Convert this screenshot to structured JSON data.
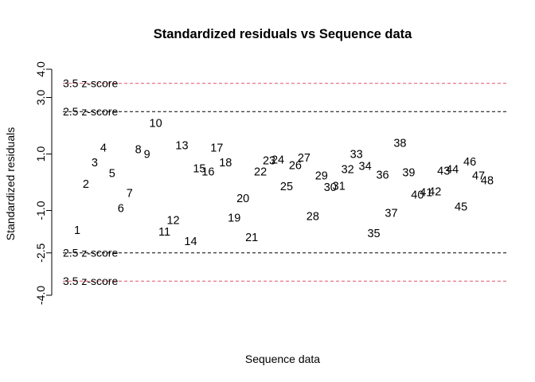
{
  "chart_data": {
    "type": "scatter",
    "title": "Standardized residuals vs Sequence data",
    "xlabel": "Sequence data",
    "ylabel": "Standardized residuals",
    "xlim": [
      1,
      48
    ],
    "ylim": [
      -4.0,
      4.0
    ],
    "y_ticks": [
      "4.0",
      "3.0",
      "1.0",
      "-1.0",
      "-2.5",
      "-4.0"
    ],
    "y_tick_values": [
      4.0,
      3.0,
      1.0,
      -1.0,
      -2.5,
      -4.0
    ],
    "grid": false,
    "marker": "text",
    "reference_lines": [
      {
        "label": "3.5 z-score",
        "value": 3.5,
        "color": "#DF536B",
        "style": "dashed"
      },
      {
        "label": "2.5 z-score",
        "value": 2.5,
        "color": "#000000",
        "style": "dashed"
      },
      {
        "label": "2.5 z-score",
        "value": -2.5,
        "color": "#000000",
        "style": "dashed"
      },
      {
        "label": "3.5 z-score",
        "value": -3.5,
        "color": "#DF536B",
        "style": "dashed"
      }
    ],
    "points": [
      {
        "x": 1,
        "y": -1.69,
        "label": "1"
      },
      {
        "x": 2,
        "y": -0.06,
        "label": "2"
      },
      {
        "x": 3,
        "y": 0.7,
        "label": "3"
      },
      {
        "x": 4,
        "y": 1.23,
        "label": "4"
      },
      {
        "x": 5,
        "y": 0.33,
        "label": "5"
      },
      {
        "x": 6,
        "y": -0.92,
        "label": "6"
      },
      {
        "x": 7,
        "y": -0.38,
        "label": "7"
      },
      {
        "x": 8,
        "y": 1.17,
        "label": "8"
      },
      {
        "x": 9,
        "y": 1.0,
        "label": "9"
      },
      {
        "x": 10,
        "y": 2.1,
        "label": "10"
      },
      {
        "x": 11,
        "y": -1.74,
        "label": "11"
      },
      {
        "x": 12,
        "y": -1.34,
        "label": "12"
      },
      {
        "x": 13,
        "y": 1.31,
        "label": "13"
      },
      {
        "x": 14,
        "y": -2.08,
        "label": "14"
      },
      {
        "x": 15,
        "y": 0.5,
        "label": "15"
      },
      {
        "x": 16,
        "y": 0.38,
        "label": "16"
      },
      {
        "x": 17,
        "y": 1.23,
        "label": "17"
      },
      {
        "x": 18,
        "y": 0.7,
        "label": "18"
      },
      {
        "x": 19,
        "y": -1.25,
        "label": "19"
      },
      {
        "x": 20,
        "y": -0.56,
        "label": "20"
      },
      {
        "x": 21,
        "y": -1.94,
        "label": "21"
      },
      {
        "x": 22,
        "y": 0.38,
        "label": "22"
      },
      {
        "x": 23,
        "y": 0.78,
        "label": "23"
      },
      {
        "x": 24,
        "y": 0.81,
        "label": "24"
      },
      {
        "x": 25,
        "y": -0.14,
        "label": "25"
      },
      {
        "x": 26,
        "y": 0.61,
        "label": "26"
      },
      {
        "x": 27,
        "y": 0.87,
        "label": "27"
      },
      {
        "x": 28,
        "y": -1.2,
        "label": "28"
      },
      {
        "x": 29,
        "y": 0.24,
        "label": "29"
      },
      {
        "x": 30,
        "y": -0.16,
        "label": "30"
      },
      {
        "x": 31,
        "y": -0.13,
        "label": "31"
      },
      {
        "x": 32,
        "y": 0.46,
        "label": "32"
      },
      {
        "x": 33,
        "y": 1.0,
        "label": "33"
      },
      {
        "x": 34,
        "y": 0.58,
        "label": "34"
      },
      {
        "x": 35,
        "y": -1.8,
        "label": "35"
      },
      {
        "x": 36,
        "y": 0.27,
        "label": "36"
      },
      {
        "x": 37,
        "y": -1.08,
        "label": "37"
      },
      {
        "x": 38,
        "y": 1.39,
        "label": "38"
      },
      {
        "x": 39,
        "y": 0.36,
        "label": "39"
      },
      {
        "x": 40,
        "y": -0.43,
        "label": "40"
      },
      {
        "x": 41,
        "y": -0.35,
        "label": "41"
      },
      {
        "x": 42,
        "y": -0.32,
        "label": "42"
      },
      {
        "x": 43,
        "y": 0.41,
        "label": "43"
      },
      {
        "x": 44,
        "y": 0.47,
        "label": "44"
      },
      {
        "x": 45,
        "y": -0.85,
        "label": "45"
      },
      {
        "x": 46,
        "y": 0.73,
        "label": "46"
      },
      {
        "x": 47,
        "y": 0.24,
        "label": "47"
      },
      {
        "x": 48,
        "y": 0.07,
        "label": "48"
      }
    ]
  }
}
